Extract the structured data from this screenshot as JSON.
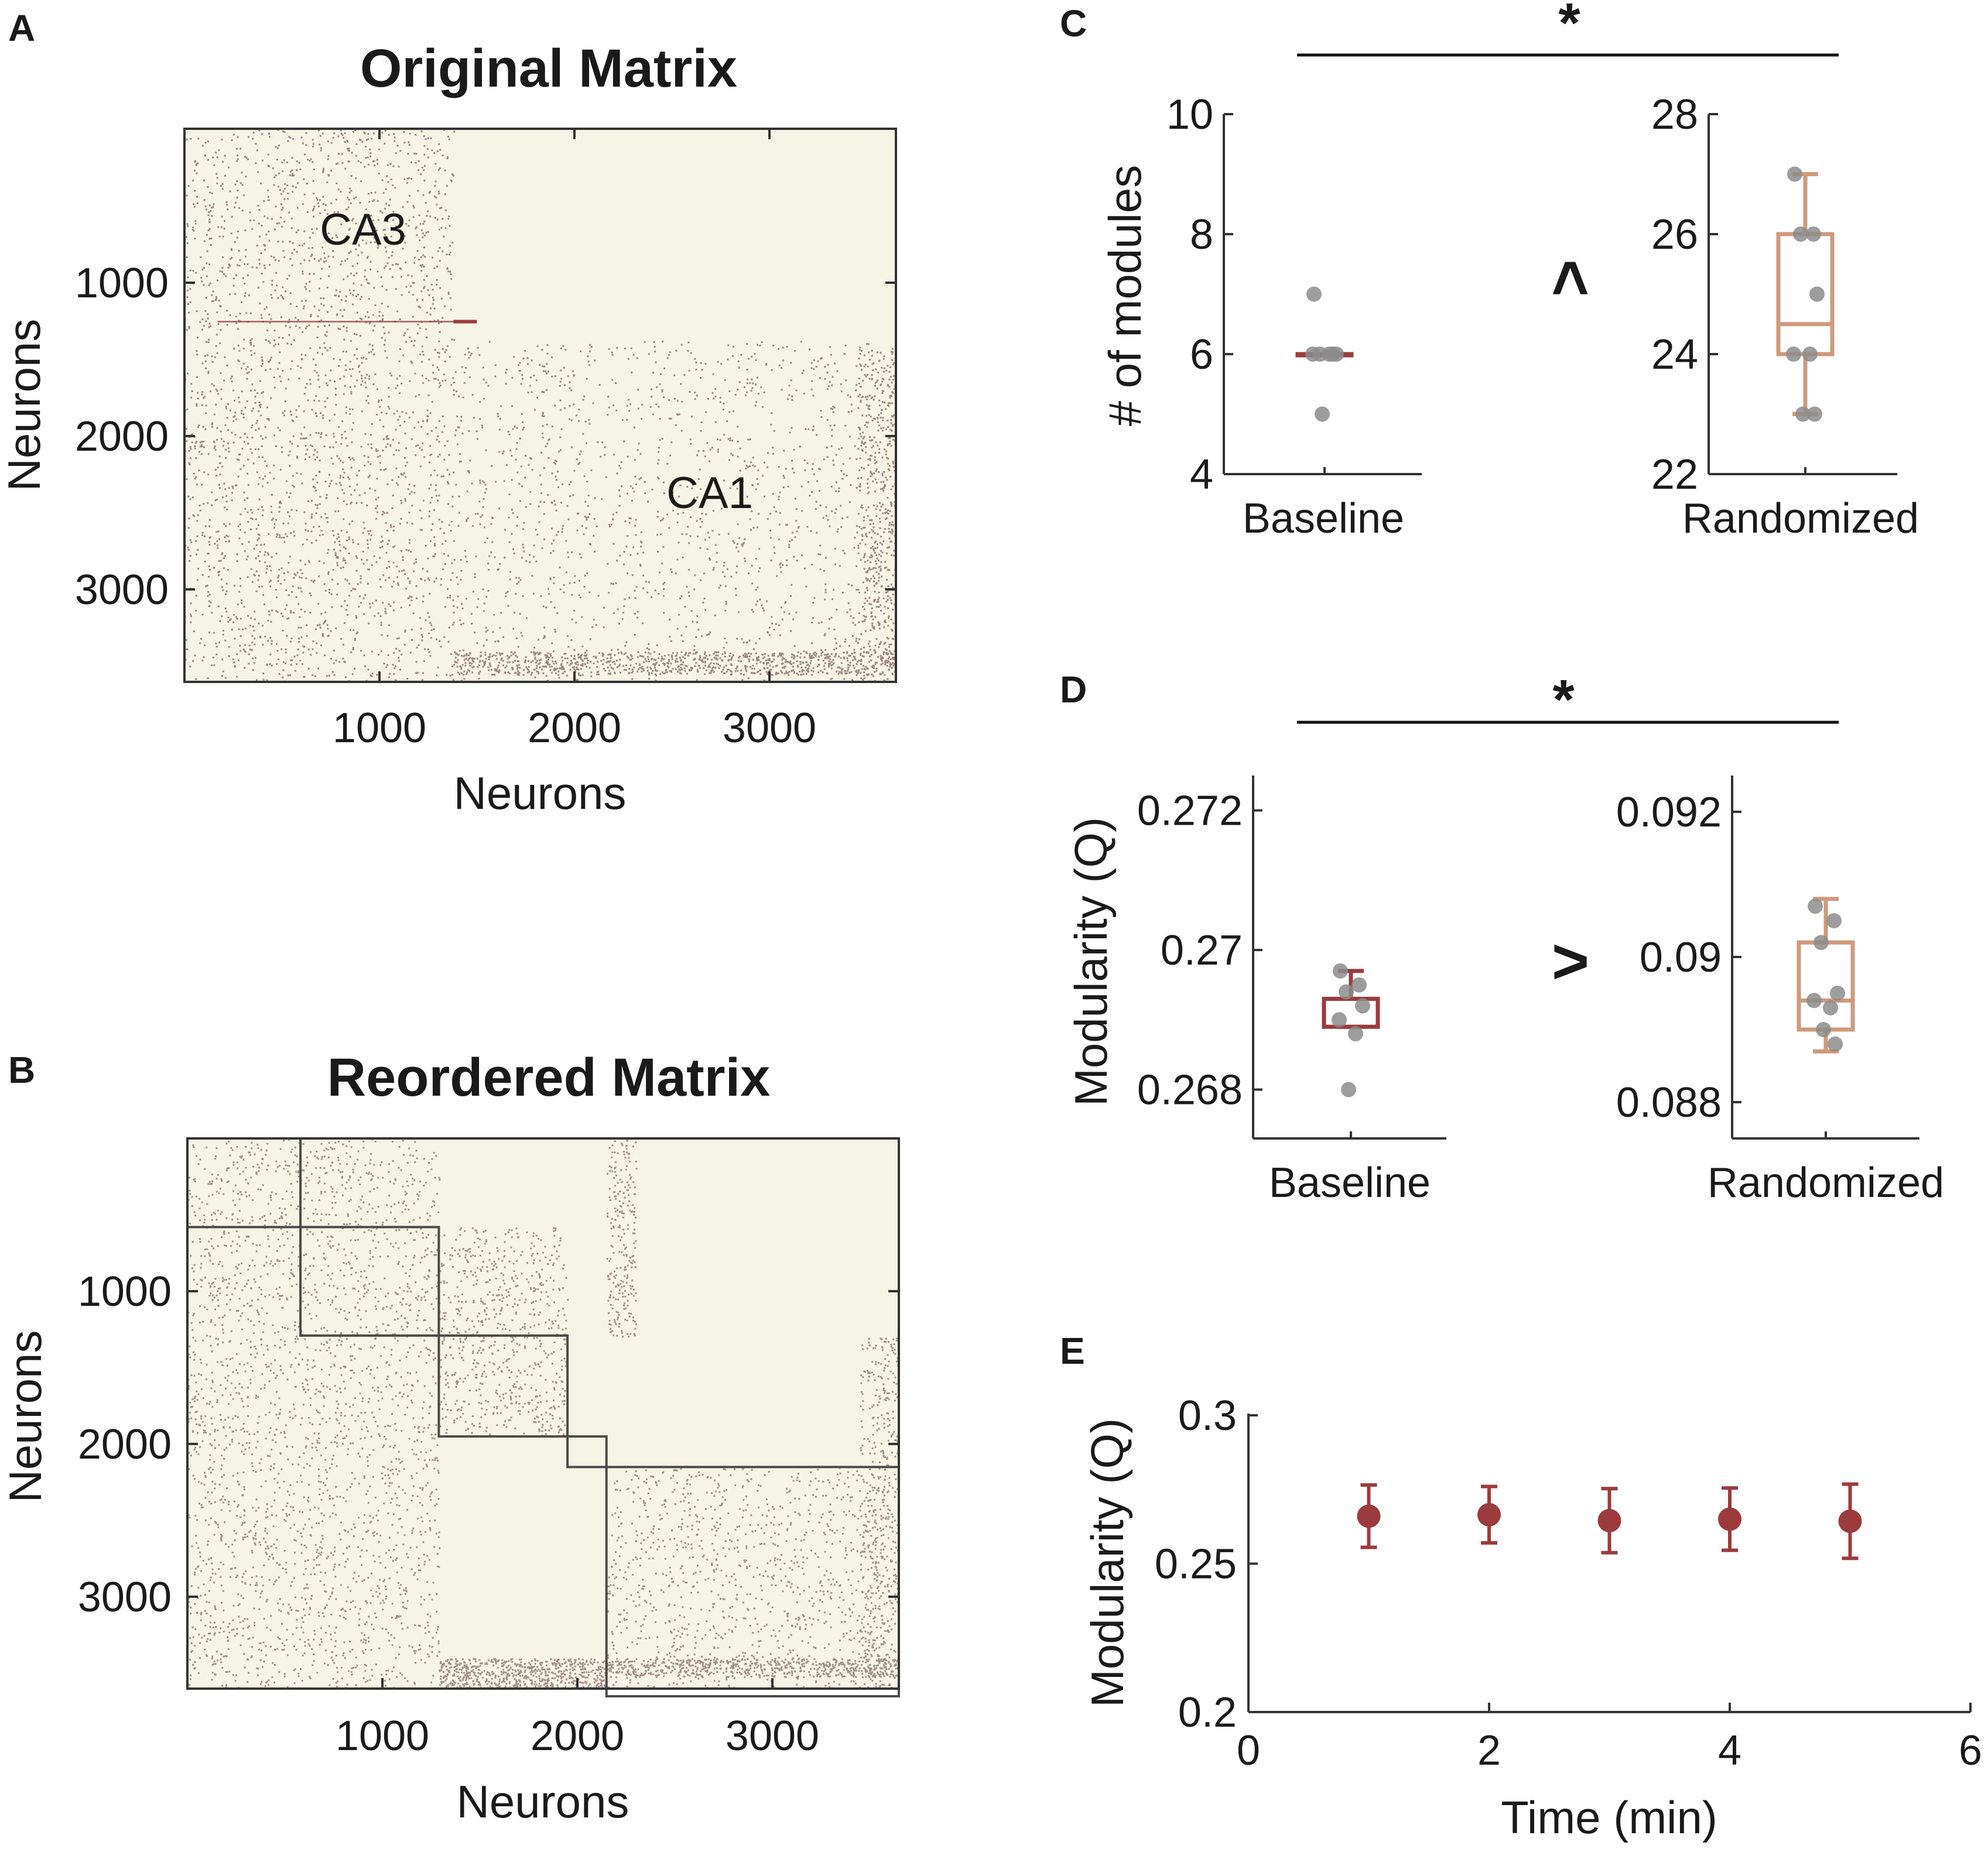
{
  "colors": {
    "matrix_bg": "#f6f4e6",
    "dot": "#6b4b4f",
    "dark_red": "#9b3b3d",
    "tan": "#cf9a7c",
    "gray_point": "#8c8c8c",
    "axis": "#333333"
  },
  "chart_data": [
    {
      "id": "A",
      "panel_letter": "A",
      "type": "heatmap",
      "title": "Original Matrix",
      "xlabel": "Neurons",
      "ylabel": "Neurons",
      "xlim": [
        0,
        3650
      ],
      "ylim": [
        0,
        3600
      ],
      "xticks": [
        "1000",
        "2000",
        "3000"
      ],
      "yticks": [
        "1000",
        "2000",
        "3000"
      ],
      "annotations": [
        "CA3",
        "CA1"
      ],
      "region_boundary": 1380
    },
    {
      "id": "B",
      "panel_letter": "B",
      "type": "heatmap",
      "title": "Reordered Matrix",
      "xlabel": "Neurons",
      "ylabel": "Neurons",
      "xlim": [
        0,
        3650
      ],
      "ylim": [
        0,
        3600
      ],
      "xticks": [
        "1000",
        "2000",
        "3000"
      ],
      "yticks": [
        "1000",
        "2000",
        "3000"
      ],
      "module_bounds": [
        0,
        580,
        1290,
        1950,
        2150,
        3650
      ]
    },
    {
      "id": "C",
      "panel_letter": "C",
      "type": "box",
      "ylabel": "# of modules",
      "significance": "*",
      "comparison": "<",
      "groups": [
        {
          "name": "Baseline",
          "ylim": [
            4,
            10
          ],
          "yticks": [
            "4",
            "6",
            "8",
            "10"
          ],
          "points": [
            7,
            6,
            6,
            6,
            6,
            6,
            5
          ],
          "box": {
            "q1": 6,
            "median": 6,
            "q3": 6,
            "whisker_low": 6,
            "whisker_high": 6
          }
        },
        {
          "name": "Randomized",
          "ylim": [
            22,
            28
          ],
          "yticks": [
            "22",
            "24",
            "26",
            "28"
          ],
          "points": [
            27,
            26,
            26,
            25,
            24,
            24,
            23,
            23
          ],
          "box": {
            "q1": 24,
            "median": 24.5,
            "q3": 26,
            "whisker_low": 23,
            "whisker_high": 27
          }
        }
      ]
    },
    {
      "id": "D",
      "panel_letter": "D",
      "type": "box",
      "ylabel": "Modularity (Q)",
      "significance": "*",
      "comparison": ">",
      "groups": [
        {
          "name": "Baseline",
          "ylim": [
            0.2673,
            0.2725
          ],
          "yticks": [
            "0.268",
            "0.27",
            "0.272"
          ],
          "tick_values": [
            0.268,
            0.27,
            0.272
          ],
          "points": [
            0.2697,
            0.2695,
            0.2694,
            0.2692,
            0.269,
            0.2688,
            0.268
          ],
          "box": {
            "q1": 0.2689,
            "median": 0.2693,
            "q3": 0.2693,
            "whisker_low": 0.2689,
            "whisker_high": 0.2697
          }
        },
        {
          "name": "Randomized",
          "ylim": [
            0.0875,
            0.0925
          ],
          "yticks": [
            "0.088",
            "0.09",
            "0.092"
          ],
          "tick_values": [
            0.088,
            0.09,
            0.092
          ],
          "points": [
            0.0907,
            0.0905,
            0.0902,
            0.0895,
            0.0894,
            0.0893,
            0.089,
            0.0888
          ],
          "box": {
            "q1": 0.089,
            "median": 0.0894,
            "q3": 0.0902,
            "whisker_low": 0.0887,
            "whisker_high": 0.0908
          }
        }
      ]
    },
    {
      "id": "E",
      "panel_letter": "E",
      "type": "scatter",
      "xlabel": "Time (min)",
      "ylabel": "Modularity (Q)",
      "xlim": [
        0,
        6
      ],
      "ylim": [
        0.2,
        0.3
      ],
      "xticks": [
        "0",
        "2",
        "4",
        "6"
      ],
      "yticks": [
        "0.2",
        "0.25",
        "0.3"
      ],
      "x": [
        1,
        2,
        3,
        4,
        5
      ],
      "y": [
        0.266,
        0.2665,
        0.2645,
        0.265,
        0.2643
      ],
      "err": [
        0.0105,
        0.0095,
        0.0108,
        0.0105,
        0.0125
      ]
    }
  ]
}
